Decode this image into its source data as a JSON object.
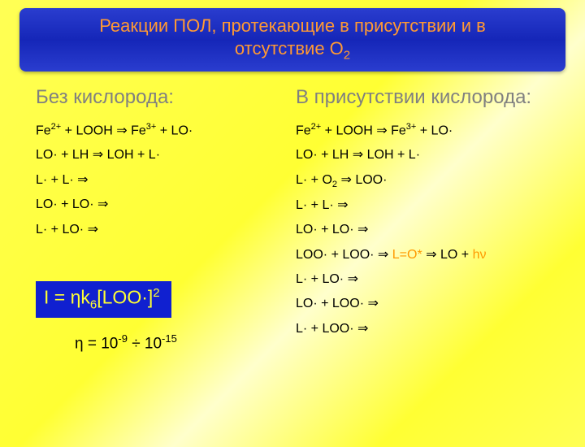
{
  "title_line1": "Реакции ПОЛ, протекающие в присутствии и в",
  "title_line2_a": "отсутствие O",
  "title_line2_sub": "2",
  "left": {
    "heading": "Без кислорода:",
    "reactions": [
      [
        {
          "t": "Fe"
        },
        {
          "t": "2+",
          "sup": true
        },
        {
          "t": " + LOOH ⇒ Fe"
        },
        {
          "t": "3+",
          "sup": true
        },
        {
          "t": " + LO·"
        }
      ],
      [
        {
          "t": "LO· + LH ⇒ LOH + L·"
        }
      ],
      [
        {
          "t": "L· + L· ⇒"
        }
      ],
      [
        {
          "t": "LO· + LO· ⇒"
        }
      ],
      [
        {
          "t": "L· + LO· ⇒"
        }
      ]
    ]
  },
  "right": {
    "heading": "В присутствии кислорода:",
    "reactions": [
      [
        {
          "t": "Fe"
        },
        {
          "t": "2+",
          "sup": true
        },
        {
          "t": " + LOOH ⇒ Fe"
        },
        {
          "t": "3+",
          "sup": true
        },
        {
          "t": " + LO·"
        }
      ],
      [
        {
          "t": "LO· + LH ⇒ LOH + L·"
        }
      ],
      [
        {
          "t": "L· + O"
        },
        {
          "t": "2",
          "sub": true
        },
        {
          "t": " ⇒ LOO·"
        }
      ],
      [
        {
          "t": "L· + L· ⇒"
        }
      ],
      [
        {
          "t": "LO· + LO· ⇒"
        }
      ],
      [
        {
          "t": "LOO· + LOO· ⇒ "
        },
        {
          "t": "L=O*",
          "hl": true
        },
        {
          "t": " ⇒ LO + "
        },
        {
          "t": "hν",
          "hl": true
        }
      ],
      [
        {
          "t": "L· + LO· ⇒"
        }
      ],
      [
        {
          "t": "LO· + LOO· ⇒"
        }
      ],
      [
        {
          "t": "L· + LOO· ⇒"
        }
      ]
    ]
  },
  "formula": {
    "pre": "I = ηk",
    "sub": "6",
    "post": "[LOO·]",
    "sup": "2"
  },
  "eta": {
    "pre": "η = 10",
    "e1": "-9",
    "mid": " ÷ 10",
    "e2": "-15"
  },
  "colors": {
    "title_bg": "#1526b8",
    "title_fg": "#ff9933",
    "heading_fg": "#808080",
    "text_fg": "#000000",
    "highlight_fg": "#ff9900",
    "formula_bg": "#1020d0",
    "formula_fg": "#ffff33",
    "slide_bg": "#ffff44"
  }
}
